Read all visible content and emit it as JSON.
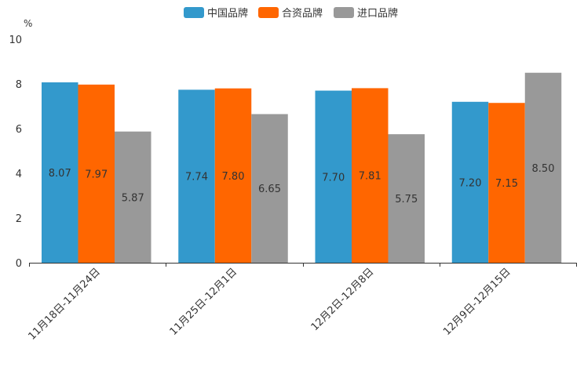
{
  "chart_data": {
    "type": "bar",
    "title": "",
    "ylabel": "%",
    "xlabel": "",
    "ylim": [
      0,
      10
    ],
    "yticks": [
      "0",
      "2",
      "4",
      "6",
      "8",
      "10"
    ],
    "grid": false,
    "legend_position": "top-center",
    "categories": [
      "11月18日-11月24日",
      "11月25日-12月1日",
      "12月2日-12月8日",
      "12月9日-12月15日"
    ],
    "series": [
      {
        "name": "中国品牌",
        "color": "#3399cc",
        "values": [
          8.07,
          7.74,
          7.7,
          7.2
        ],
        "labels": [
          "8.07",
          "7.74",
          "7.70",
          "7.20"
        ]
      },
      {
        "name": "合资品牌",
        "color": "#ff6600",
        "values": [
          7.97,
          7.8,
          7.81,
          7.15
        ],
        "labels": [
          "7.97",
          "7.80",
          "7.81",
          "7.15"
        ]
      },
      {
        "name": "进口品牌",
        "color": "#999999",
        "values": [
          5.87,
          6.65,
          5.75,
          8.5
        ],
        "labels": [
          "5.87",
          "6.65",
          "5.75",
          "8.50"
        ]
      }
    ]
  }
}
